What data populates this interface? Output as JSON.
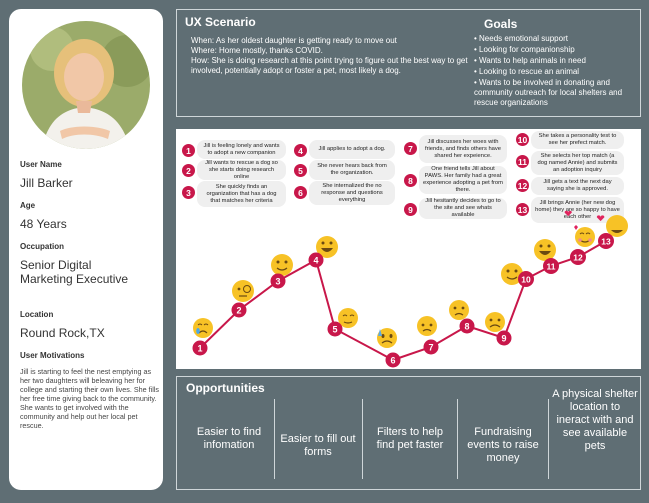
{
  "persona": {
    "name_label": "User Name",
    "name": "Jill Barker",
    "age_label": "Age",
    "age": "48 Years",
    "occupation_label": "Occupation",
    "occupation": "Senior Digital Marketing Executive",
    "location_label": "Location",
    "location": "Round Rock,TX",
    "motivations_label": "User Motivations",
    "motivations": "Jill is starting to feel the nest emptying as her two daughters will beleaving her for college and starting their own lives. She fills her free time giving back to the community. She wants to get involved with the community and help out her local pet rescue."
  },
  "scenario": {
    "title": "UX Scenario",
    "when": "When: As her oldest daughter is getting ready to move out",
    "where": "Where: Home mostly, thanks COVID.",
    "how": "How: She is doing research at this point trying to figure out the best way to get involved, potentially adopt or foster a pet, most likely a dog."
  },
  "goals": {
    "title": "Goals",
    "items": [
      "• Needs emotional support",
      "• Looking for companionship",
      "• Wants to help animals in need",
      "• Looking to rescue an animal",
      "• Wants to be involved in donating and community outreach for local shelters and rescue organizations"
    ]
  },
  "journey": {
    "steps": [
      {
        "num": "1",
        "text": "Jill is feeling lonely and wants to adopt a new companion"
      },
      {
        "num": "2",
        "text": "Jill wants to rescue a dog so she starts doing research online"
      },
      {
        "num": "3",
        "text": "She quickly finds an organization that has a dog that matches her criteria"
      },
      {
        "num": "4",
        "text": "Jill applies to adopt a dog."
      },
      {
        "num": "5",
        "text": "She never hears back from the organization."
      },
      {
        "num": "6",
        "text": "She internalized the no response and questions everything"
      },
      {
        "num": "7",
        "text": "Jill discusses her woes with friends, and finds others have shared her expeience."
      },
      {
        "num": "8",
        "text": "One friend tells Jill about PAWS. Her family had a great experience adopting a pet from there."
      },
      {
        "num": "9",
        "text": "Jill hesitantly decides to go to the site and see whats available"
      },
      {
        "num": "10",
        "text": "She takes a personality test to see her prefect match."
      },
      {
        "num": "11",
        "text": "She selects her top match (a dog named Annie) and submits an adoption inquiry"
      },
      {
        "num": "12",
        "text": "Jill gets a text the next day saying she is approved."
      },
      {
        "num": "13",
        "text": "Jill brings Annie (her new dog home) they are so happy to have each other"
      }
    ],
    "emotion_icons": [
      "crying-face-icon",
      "face-with-monocle-icon",
      "slightly-smiling-face-icon",
      "grinning-face-icon",
      "relieved-face-icon",
      "anxious-sweat-face-icon",
      "worried-face-icon",
      "slightly-frowning-face-icon",
      "frowning-face-icon",
      "slightly-smiling-face-icon",
      "grinning-face-icon",
      "smiling-heart-eyes-icon",
      "heart-eyes-face-icon"
    ],
    "colors": {
      "line": "#c8174a",
      "badge": "#c8174a",
      "emoji": "#f7c226"
    }
  },
  "opportunities": {
    "title": "Opportunities",
    "items": [
      "Easier to find infomation",
      "Easier to fill out forms",
      "Filters to help find pet faster",
      "Fundraising events to raise money",
      "A physical shelter location to ineract with and see available pets"
    ]
  }
}
